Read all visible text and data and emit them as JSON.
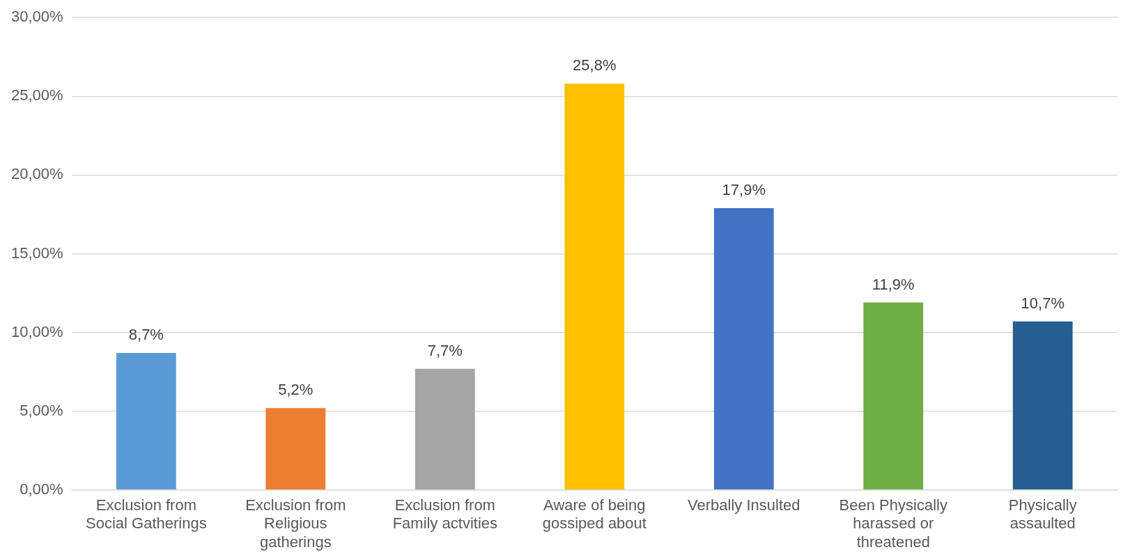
{
  "chart_data": {
    "type": "bar",
    "categories": [
      "Exclusion from Social Gatherings",
      "Exclusion from Religious gatherings",
      "Exclusion from Family actvities",
      "Aware of being gossiped about",
      "Verbally Insulted",
      "Been Physically harassed or threatened",
      "Physically assaulted"
    ],
    "values": [
      8.7,
      5.2,
      7.7,
      25.8,
      17.9,
      11.9,
      10.7
    ],
    "colors": [
      "#5b9bd5",
      "#ed7d31",
      "#a5a5a5",
      "#ffc000",
      "#4472c4",
      "#70ad47",
      "#255e91"
    ],
    "value_labels": [
      "8,7%",
      "5,2%",
      "7,7%",
      "25,8%",
      "17,9%",
      "11,9%",
      "10,7%"
    ],
    "ylim": [
      0,
      30
    ],
    "yticks": [
      {
        "value": 0,
        "label": "0,00%"
      },
      {
        "value": 5,
        "label": "5,00%"
      },
      {
        "value": 10,
        "label": "10,00%"
      },
      {
        "value": 15,
        "label": "15,00%"
      },
      {
        "value": 20,
        "label": "20,00%"
      },
      {
        "value": 25,
        "label": "25,00%"
      },
      {
        "value": 30,
        "label": "30,00%"
      }
    ],
    "grid": "y"
  }
}
